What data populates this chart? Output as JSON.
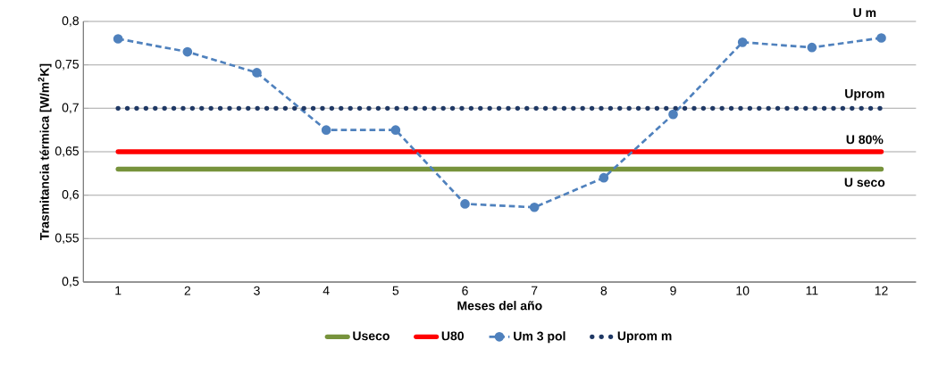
{
  "chart_data": {
    "type": "line",
    "xlabel": "Meses del año",
    "ylabel": "Trasmitancia térmica [W/m$^{2}$K]",
    "categories": [
      "1",
      "2",
      "3",
      "4",
      "5",
      "6",
      "7",
      "8",
      "9",
      "10",
      "11",
      "12"
    ],
    "series": [
      {
        "name": "Useco",
        "color": "#77933c",
        "line_style": "solid",
        "marker": "none",
        "values": [
          0.63,
          0.63,
          0.63,
          0.63,
          0.63,
          0.63,
          0.63,
          0.63,
          0.63,
          0.63,
          0.63,
          0.63
        ]
      },
      {
        "name": "U80",
        "color": "#ff0000",
        "line_style": "solid",
        "marker": "none",
        "values": [
          0.65,
          0.65,
          0.65,
          0.65,
          0.65,
          0.65,
          0.65,
          0.65,
          0.65,
          0.65,
          0.65,
          0.65
        ]
      },
      {
        "name": "Um 3 pol",
        "color": "#4f81bd",
        "line_style": "dashed",
        "marker": "circle",
        "values": [
          0.78,
          0.765,
          0.741,
          0.675,
          0.675,
          0.59,
          0.586,
          0.62,
          0.693,
          0.776,
          0.77,
          0.781
        ]
      },
      {
        "name": "Uprom m",
        "color": "#1f3864",
        "line_style": "dotted",
        "marker": "none",
        "values": [
          0.7,
          0.7,
          0.7,
          0.7,
          0.7,
          0.7,
          0.7,
          0.7,
          0.7,
          0.7,
          0.7,
          0.7
        ]
      }
    ],
    "ylim": [
      0.5,
      0.8
    ],
    "yticks": [
      {
        "value": 0.5,
        "label": "0,5"
      },
      {
        "value": 0.55,
        "label": "0,55"
      },
      {
        "value": 0.6,
        "label": "0,6"
      },
      {
        "value": 0.65,
        "label": "0,65"
      },
      {
        "value": 0.7,
        "label": "0,7"
      },
      {
        "value": 0.75,
        "label": "0,75"
      },
      {
        "value": 0.8,
        "label": "0,8"
      }
    ],
    "grid": "y",
    "legend": "bottom",
    "annotations": [
      {
        "text": "U m",
        "x": "12",
        "y": 0.781
      },
      {
        "text": "Uprom",
        "x": "12",
        "y": 0.7
      },
      {
        "text": "U 80%",
        "x": "12",
        "y": 0.65
      },
      {
        "text": "U seco",
        "x": "12",
        "y": 0.63
      }
    ]
  }
}
